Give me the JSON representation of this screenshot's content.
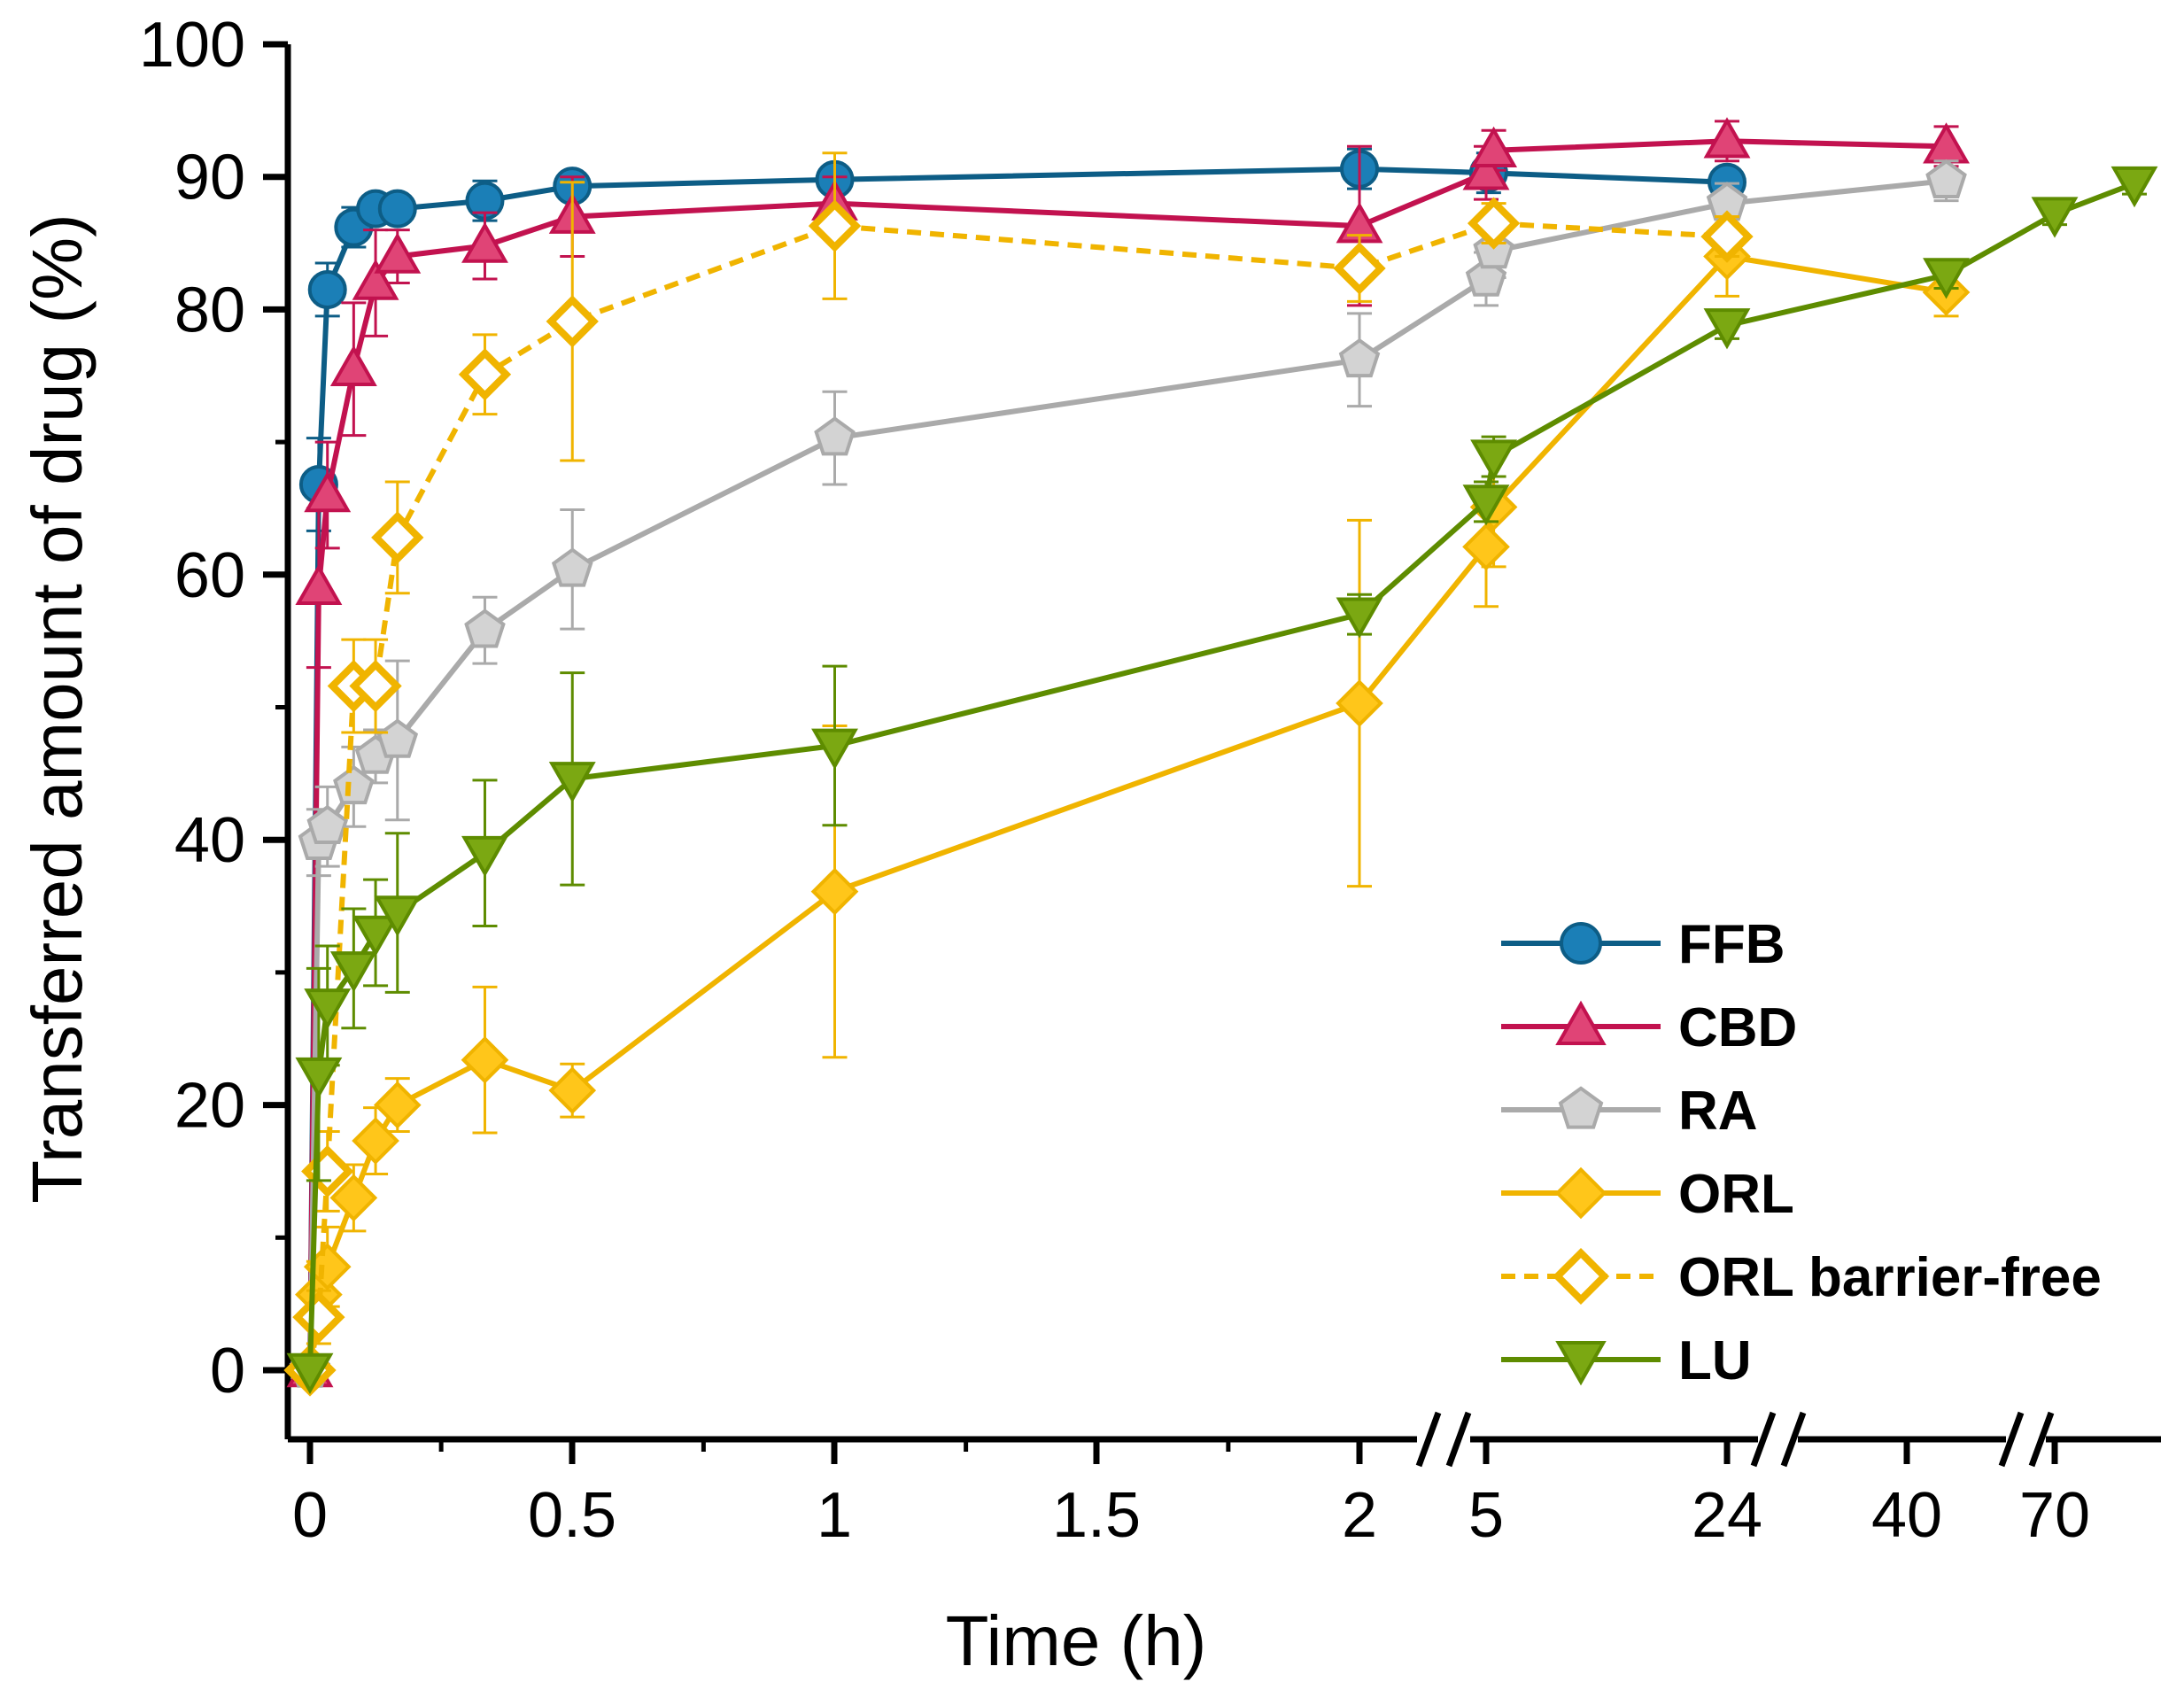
{
  "chart_data": {
    "type": "line",
    "title": "",
    "xlabel": "Time (h)",
    "ylabel": "Transferred amount of drug (%)",
    "ylim": [
      0,
      100
    ],
    "x_axis": {
      "segments": [
        {
          "from": 0,
          "to": 2
        },
        {
          "from": 5,
          "to": 24
        },
        {
          "from": 40,
          "to": 70
        }
      ],
      "tick_labels": [
        "0",
        "0.5",
        "1",
        "1.5",
        "2",
        "5",
        "24",
        "40",
        "70"
      ]
    },
    "y_ticks": [
      "0",
      "20",
      "40",
      "60",
      "80",
      "90",
      "100"
    ],
    "series": [
      {
        "name": "FFB",
        "color": "#0d5d86",
        "fill": "#1b7fb7",
        "marker": "circle",
        "dashed": false,
        "hollow": false,
        "x": [
          0,
          0.0167,
          0.0333,
          0.0833,
          0.125,
          0.1667,
          0.3333,
          0.5,
          1,
          2,
          5.2,
          24,
          48
        ],
        "y": [
          0,
          66.8,
          81.5,
          86.2,
          87.6,
          87.6,
          88.2,
          89.3,
          89.8,
          90.6,
          90.3,
          89.6,
          null
        ],
        "err": [
          0,
          3.5,
          2.0,
          1.5,
          1.0,
          1.0,
          1.5,
          1.0,
          1.0,
          1.5,
          1.5,
          1.0,
          0
        ]
      },
      {
        "name": "CBD",
        "color": "#c2124f",
        "fill": "#e04476",
        "marker": "triangle-up",
        "dashed": false,
        "hollow": false,
        "x": [
          0,
          0.0167,
          0.0333,
          0.0833,
          0.125,
          0.1667,
          0.3333,
          0.5,
          1,
          2,
          5,
          5.6,
          24,
          48
        ],
        "y": [
          0,
          59,
          66,
          75.5,
          82,
          84,
          84.8,
          87,
          88,
          86.3,
          90.3,
          92,
          92.7,
          92.3
        ],
        "err": [
          0,
          6,
          4,
          5,
          4,
          2,
          2.5,
          3,
          2,
          6,
          2,
          1.5,
          1.5,
          1.5
        ]
      },
      {
        "name": "RA",
        "color": "#aaaaaa",
        "fill": "#d3d3d3",
        "marker": "pentagon",
        "dashed": false,
        "hollow": false,
        "x": [
          0,
          0.0167,
          0.0333,
          0.0833,
          0.125,
          0.1667,
          0.3333,
          0.5,
          1,
          2,
          5,
          5.6,
          24,
          48
        ],
        "y": [
          0,
          39.8,
          41,
          44,
          46.3,
          47.5,
          55.8,
          60.4,
          70.3,
          76.2,
          82.3,
          84.4,
          88,
          89.7
        ],
        "err": [
          0,
          2.5,
          3,
          3,
          2,
          6,
          2.5,
          4.5,
          3.5,
          3.5,
          2,
          2,
          1.5,
          1.5
        ]
      },
      {
        "name": "ORL",
        "color": "#f0b400",
        "fill": "#ffc61a",
        "marker": "diamond",
        "dashed": false,
        "hollow": false,
        "x": [
          0,
          0.0167,
          0.0333,
          0.0833,
          0.125,
          0.1667,
          0.3333,
          0.5,
          1,
          2,
          5,
          5.6,
          24,
          48
        ],
        "y": [
          0,
          5.7,
          7.8,
          13,
          17.3,
          20,
          23.4,
          21.1,
          36.1,
          50.3,
          62.1,
          65.1,
          84,
          81.3
        ],
        "err": [
          0,
          2.5,
          3,
          2.5,
          2.5,
          2,
          5.5,
          2,
          12.5,
          13.8,
          4.5,
          4.5,
          3,
          1.8
        ]
      },
      {
        "name": "ORL barrier-free",
        "color": "#f0b400",
        "fill": "#ffffff",
        "marker": "diamond",
        "dashed": true,
        "hollow": true,
        "x": [
          0,
          0.0167,
          0.0333,
          0.0833,
          0.125,
          0.1667,
          0.3333,
          0.5,
          1,
          2,
          5.6,
          24
        ],
        "y": [
          0,
          4,
          15,
          51.6,
          51.6,
          62.8,
          75.1,
          79.1,
          86.3,
          83.1,
          86.5,
          85.5
        ],
        "err": [
          0,
          2,
          3,
          3.5,
          3.5,
          4.2,
          3,
          10.5,
          5.5,
          2.5,
          1.5,
          1.5
        ]
      },
      {
        "name": "LU",
        "color": "#5e8c00",
        "fill": "#7ba812",
        "marker": "triangle-down",
        "dashed": false,
        "hollow": false,
        "x": [
          0,
          0.0167,
          0.0333,
          0.0833,
          0.125,
          0.1667,
          0.3333,
          0.5,
          1,
          2,
          5,
          5.6,
          24,
          48,
          70,
          80
        ],
        "y": [
          0,
          22.3,
          27.5,
          30.3,
          33,
          34.5,
          39,
          44.6,
          47.1,
          57,
          65.5,
          68.9,
          78.8,
          82.6,
          87.2,
          89.5
        ],
        "err": [
          0,
          8,
          4.5,
          4.5,
          4,
          6,
          5.5,
          8,
          6,
          1.5,
          1.5,
          1.5,
          1,
          1,
          0.8,
          0.8
        ]
      }
    ],
    "legend_position": "bottom-right"
  }
}
